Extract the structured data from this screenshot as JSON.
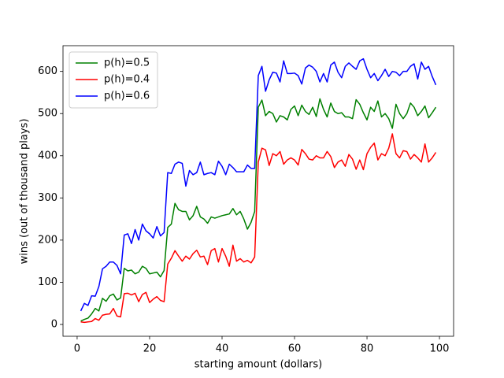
{
  "chart_data": {
    "type": "line",
    "x_label": "starting amount (dollars)",
    "y_label": "wins (out of thousand plays)",
    "x": [
      1,
      2,
      3,
      4,
      5,
      6,
      7,
      8,
      9,
      10,
      11,
      12,
      13,
      14,
      15,
      16,
      17,
      18,
      19,
      20,
      21,
      22,
      23,
      24,
      25,
      26,
      27,
      28,
      29,
      30,
      31,
      32,
      33,
      34,
      35,
      36,
      37,
      38,
      39,
      40,
      41,
      42,
      43,
      44,
      45,
      46,
      47,
      48,
      49,
      50,
      51,
      52,
      53,
      54,
      55,
      56,
      57,
      58,
      59,
      60,
      61,
      62,
      63,
      64,
      65,
      66,
      67,
      68,
      69,
      70,
      71,
      72,
      73,
      74,
      75,
      76,
      77,
      78,
      79,
      80,
      81,
      82,
      83,
      84,
      85,
      86,
      87,
      88,
      89,
      90,
      91,
      92,
      93,
      94,
      95,
      96,
      97,
      98,
      99
    ],
    "series": [
      {
        "name": "p(h)=0.5",
        "color": "#008000",
        "values": [
          8,
          12,
          15,
          25,
          38,
          32,
          62,
          55,
          68,
          72,
          58,
          63,
          133,
          127,
          129,
          120,
          124,
          138,
          133,
          120,
          122,
          124,
          113,
          128,
          230,
          238,
          287,
          272,
          268,
          268,
          248,
          258,
          280,
          255,
          250,
          240,
          255,
          252,
          255,
          258,
          260,
          262,
          275,
          260,
          268,
          250,
          226,
          242,
          268,
          515,
          532,
          495,
          505,
          500,
          480,
          495,
          492,
          485,
          510,
          518,
          495,
          520,
          505,
          498,
          515,
          493,
          535,
          510,
          492,
          525,
          505,
          500,
          502,
          492,
          492,
          488,
          533,
          522,
          502,
          485,
          515,
          505,
          530,
          492,
          500,
          488,
          465,
          522,
          500,
          488,
          500,
          525,
          515,
          495,
          505,
          518,
          490,
          502,
          515
        ]
      },
      {
        "name": "p(h)=0.4",
        "color": "#ff0000",
        "values": [
          6,
          5,
          6,
          7,
          14,
          10,
          22,
          24,
          25,
          38,
          20,
          18,
          73,
          74,
          70,
          74,
          54,
          71,
          76,
          52,
          60,
          66,
          57,
          54,
          143,
          157,
          175,
          162,
          150,
          162,
          155,
          168,
          176,
          160,
          162,
          142,
          175,
          180,
          148,
          180,
          162,
          138,
          188,
          150,
          156,
          148,
          152,
          146,
          160,
          385,
          418,
          414,
          377,
          405,
          400,
          410,
          380,
          390,
          395,
          390,
          378,
          415,
          405,
          392,
          390,
          400,
          395,
          395,
          410,
          398,
          372,
          385,
          390,
          375,
          403,
          392,
          368,
          390,
          367,
          405,
          420,
          430,
          390,
          405,
          400,
          418,
          452,
          405,
          395,
          412,
          410,
          392,
          403,
          395,
          385,
          428,
          385,
          395,
          408
        ]
      },
      {
        "name": "p(h)=0.6",
        "color": "#0000ff",
        "values": [
          32,
          50,
          45,
          68,
          67,
          90,
          132,
          138,
          148,
          148,
          140,
          120,
          212,
          215,
          192,
          225,
          200,
          238,
          222,
          215,
          205,
          232,
          210,
          218,
          360,
          358,
          380,
          385,
          382,
          328,
          365,
          355,
          360,
          385,
          355,
          358,
          360,
          355,
          387,
          375,
          355,
          380,
          372,
          362,
          362,
          362,
          378,
          370,
          370,
          590,
          612,
          553,
          580,
          598,
          596,
          575,
          625,
          595,
          595,
          596,
          590,
          570,
          608,
          615,
          610,
          600,
          575,
          595,
          575,
          615,
          622,
          598,
          585,
          612,
          620,
          612,
          605,
          625,
          630,
          605,
          585,
          595,
          578,
          590,
          605,
          588,
          600,
          598,
          590,
          600,
          600,
          612,
          618,
          582,
          622,
          605,
          612,
          588,
          568
        ]
      }
    ],
    "xlim": [
      -3.9,
      103.9
    ],
    "xticks": [
      0,
      20,
      40,
      60,
      80,
      100
    ],
    "ylim": [
      -28,
      661
    ],
    "yticks": [
      0,
      100,
      200,
      300,
      400,
      500,
      600
    ],
    "legend": "upper left"
  }
}
